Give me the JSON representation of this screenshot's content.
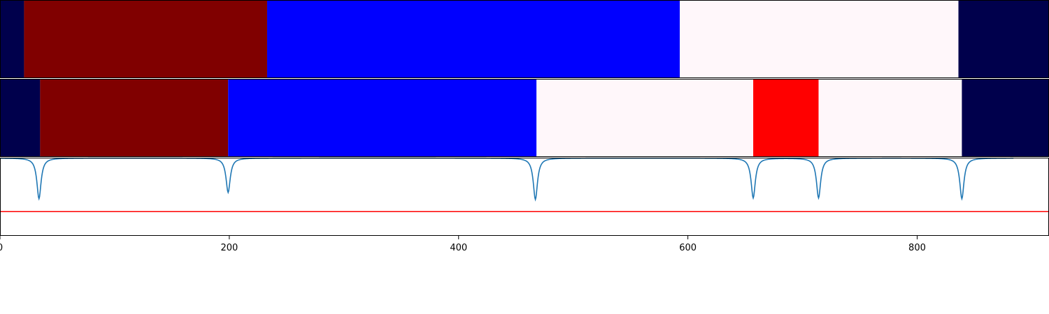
{
  "chart_data": [
    {
      "type": "heatmap",
      "panel": "segment-row-top",
      "segments": [
        {
          "start": 0,
          "end": 21,
          "color": "#00004c"
        },
        {
          "start": 21,
          "end": 233,
          "color": "#800000"
        },
        {
          "start": 233,
          "end": 593,
          "color": "#0000ff"
        },
        {
          "start": 593,
          "end": 836,
          "color": "#fff7fa"
        },
        {
          "start": 836,
          "end": 915,
          "color": "#00004c"
        }
      ]
    },
    {
      "type": "heatmap",
      "panel": "segment-row-bottom",
      "segments": [
        {
          "start": 0,
          "end": 35,
          "color": "#00004c"
        },
        {
          "start": 35,
          "end": 199,
          "color": "#800000"
        },
        {
          "start": 199,
          "end": 468,
          "color": "#0000ff"
        },
        {
          "start": 468,
          "end": 657,
          "color": "#fff7fa"
        },
        {
          "start": 657,
          "end": 714,
          "color": "#ff0000"
        },
        {
          "start": 714,
          "end": 839,
          "color": "#fff7fa"
        },
        {
          "start": 839,
          "end": 915,
          "color": "#00004c"
        }
      ]
    },
    {
      "type": "line",
      "panel": "signal",
      "xlim": [
        0,
        915
      ],
      "ylim": [
        0,
        1
      ],
      "threshold": {
        "y": 0.31,
        "color": "#ff0000"
      },
      "series": [
        {
          "color": "#1f77b4",
          "baseline": 0.995,
          "range": [
            0,
            884
          ],
          "dips": [
            {
              "x": 34,
              "depth": 0.52
            },
            {
              "x": 199,
              "depth": 0.44
            },
            {
              "x": 467,
              "depth": 0.53
            },
            {
              "x": 657,
              "depth": 0.51
            },
            {
              "x": 714,
              "depth": 0.51
            },
            {
              "x": 839,
              "depth": 0.52
            }
          ]
        }
      ],
      "xticks": [
        0,
        200,
        400,
        600,
        800
      ],
      "xtick_labels": [
        "0",
        "200",
        "400",
        "600",
        "800"
      ]
    }
  ]
}
